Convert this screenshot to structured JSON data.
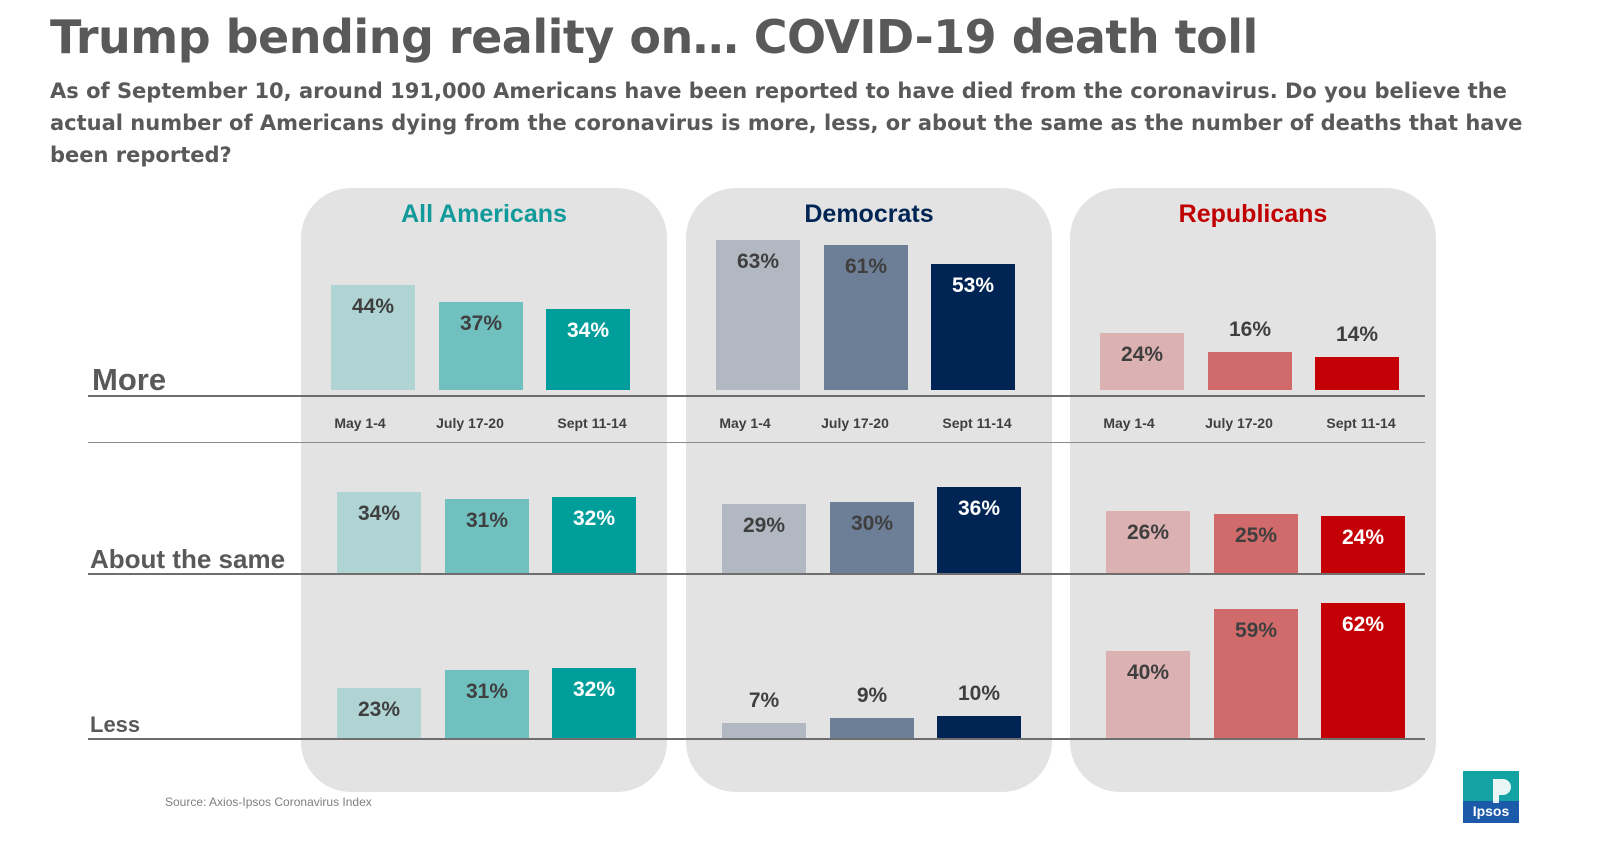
{
  "title": "Trump bending reality on… COVID-19 death toll",
  "subtitle": "As of September 10, around 191,000 Americans have been reported to have died from the coronavirus. Do you believe the actual number of Americans dying from the coronavirus is more, less, or about the same as the number of deaths that have been reported?",
  "source": "Source: Axios-Ipsos Coronavirus Index",
  "logo_text": "Ipsos",
  "chart_data": {
    "type": "bar",
    "title": "Trump bending reality on… COVID-19 death toll",
    "categories": [
      "May 1-4",
      "July 17-20",
      "Sept 11-14"
    ],
    "rows": [
      "More",
      "About the same",
      "Less"
    ],
    "value_suffix": "%",
    "groups": [
      {
        "name": "All Americans",
        "title_color": "#129A9A",
        "colors": [
          "#b0d4d4",
          "#70c0c0",
          "#009e9b"
        ],
        "label_colors": [
          "#3f3f3f",
          "#3f3f3f",
          "#ffffff"
        ],
        "series": [
          {
            "name": "More",
            "values": [
              44,
              37,
              34
            ]
          },
          {
            "name": "About the same",
            "values": [
              34,
              31,
              32
            ]
          },
          {
            "name": "Less",
            "values": [
              23,
              31,
              32
            ]
          }
        ]
      },
      {
        "name": "Democrats",
        "title_color": "#002554",
        "colors": [
          "#b1b8c2",
          "#6d7f97",
          "#002554"
        ],
        "label_colors": [
          "#3f3f3f",
          "#3f3f3f",
          "#ffffff"
        ],
        "series": [
          {
            "name": "More",
            "values": [
              63,
              61,
              53
            ]
          },
          {
            "name": "About the same",
            "values": [
              29,
              30,
              36
            ]
          },
          {
            "name": "Less",
            "values": [
              7,
              9,
              10
            ]
          }
        ]
      },
      {
        "name": "Republicans",
        "title_color": "#c00000",
        "colors": [
          "#dcb1b1",
          "#d16b6b",
          "#c40006"
        ],
        "label_colors": [
          "#3f3f3f",
          "#3f3f3f",
          "#ffffff"
        ],
        "series": [
          {
            "name": "More",
            "values": [
              24,
              16,
              14
            ]
          },
          {
            "name": "About the same",
            "values": [
              26,
              25,
              24
            ]
          },
          {
            "name": "Less",
            "values": [
              40,
              59,
              62
            ]
          }
        ]
      }
    ]
  }
}
